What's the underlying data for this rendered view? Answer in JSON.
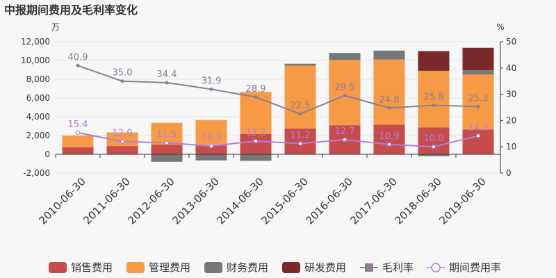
{
  "chart_data": {
    "type": "bar",
    "title": "中报期间费用及毛利率变化",
    "y_left_unit": "万",
    "y_right_unit": "%",
    "categories": [
      "2010-06-30",
      "2011-06-30",
      "2012-06-30",
      "2013-06-30",
      "2014-06-30",
      "2015-06-30",
      "2016-06-30",
      "2017-06-30",
      "2018-06-30",
      "2019-06-30"
    ],
    "ylim_left": [
      -2000,
      12000
    ],
    "yticks_left": [
      -2000,
      0,
      2000,
      4000,
      6000,
      8000,
      10000,
      12000
    ],
    "yticks_left_labels": [
      "-2,000",
      "0",
      "2,000",
      "4,000",
      "6,000",
      "8,000",
      "10,000",
      "12,000"
    ],
    "ylim_right": [
      0,
      50
    ],
    "yticks_right": [
      0,
      10,
      20,
      30,
      40,
      50
    ],
    "stacked": true,
    "series": [
      {
        "name": "销售费用",
        "type": "bar",
        "color": "#c74c4c",
        "values": [
          750,
          880,
          1000,
          950,
          2150,
          2750,
          3100,
          3150,
          2850,
          2650
        ]
      },
      {
        "name": "管理费用",
        "type": "bar",
        "color": "#f79a45",
        "values": [
          1250,
          1450,
          2350,
          2700,
          4500,
          6700,
          6950,
          6950,
          6050,
          5850
        ]
      },
      {
        "name": "财务费用",
        "type": "bar",
        "color": "#777777",
        "values": [
          0,
          0,
          -800,
          -650,
          -700,
          200,
          750,
          950,
          -200,
          450
        ]
      },
      {
        "name": "研发费用",
        "type": "bar",
        "color": "#7a2a2a",
        "values": [
          0,
          0,
          0,
          0,
          0,
          0,
          0,
          0,
          2100,
          2400
        ]
      },
      {
        "name": "毛利率",
        "type": "line",
        "axis": "right",
        "color": "#8e7d93",
        "values": [
          40.9,
          35.0,
          34.4,
          31.9,
          28.9,
          22.5,
          29.5,
          24.8,
          25.8,
          25.3
        ]
      },
      {
        "name": "期间费用率",
        "type": "line",
        "axis": "right",
        "color": "#b07de0",
        "values": [
          15.4,
          12.0,
          11.5,
          10.3,
          12.2,
          11.2,
          12.7,
          10.9,
          10.0,
          14.2
        ]
      }
    ],
    "legend": "bottom"
  }
}
